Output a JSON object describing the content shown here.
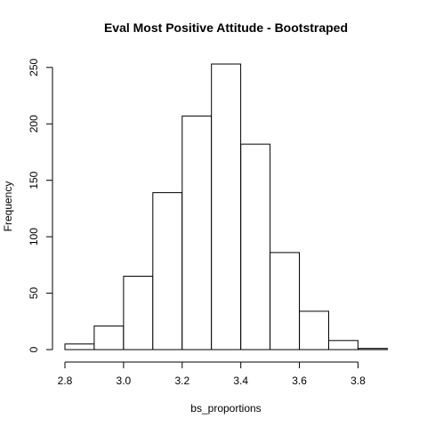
{
  "chart_data": {
    "type": "bar",
    "title": "Eval Most Positive Attitude - Bootstraped",
    "xlabel": "bs_proportions",
    "ylabel": "Frequency",
    "bins": [
      {
        "start": 2.8,
        "end": 2.9,
        "count": 5
      },
      {
        "start": 2.9,
        "end": 3.0,
        "count": 21
      },
      {
        "start": 3.0,
        "end": 3.1,
        "count": 65
      },
      {
        "start": 3.1,
        "end": 3.2,
        "count": 139
      },
      {
        "start": 3.2,
        "end": 3.3,
        "count": 207
      },
      {
        "start": 3.3,
        "end": 3.4,
        "count": 253
      },
      {
        "start": 3.4,
        "end": 3.5,
        "count": 182
      },
      {
        "start": 3.5,
        "end": 3.6,
        "count": 86
      },
      {
        "start": 3.6,
        "end": 3.7,
        "count": 34
      },
      {
        "start": 3.7,
        "end": 3.8,
        "count": 8
      },
      {
        "start": 3.8,
        "end": 3.9,
        "count": 1
      }
    ],
    "xlim": [
      2.8,
      3.9
    ],
    "ylim": [
      0,
      253
    ],
    "x_ticks": [
      "2.8",
      "3.0",
      "3.2",
      "3.4",
      "3.6",
      "3.8"
    ],
    "y_ticks": [
      "0",
      "50",
      "100",
      "150",
      "200",
      "250"
    ],
    "grid": false,
    "bar_fill": "#ffffff",
    "bar_stroke": "#000000"
  }
}
